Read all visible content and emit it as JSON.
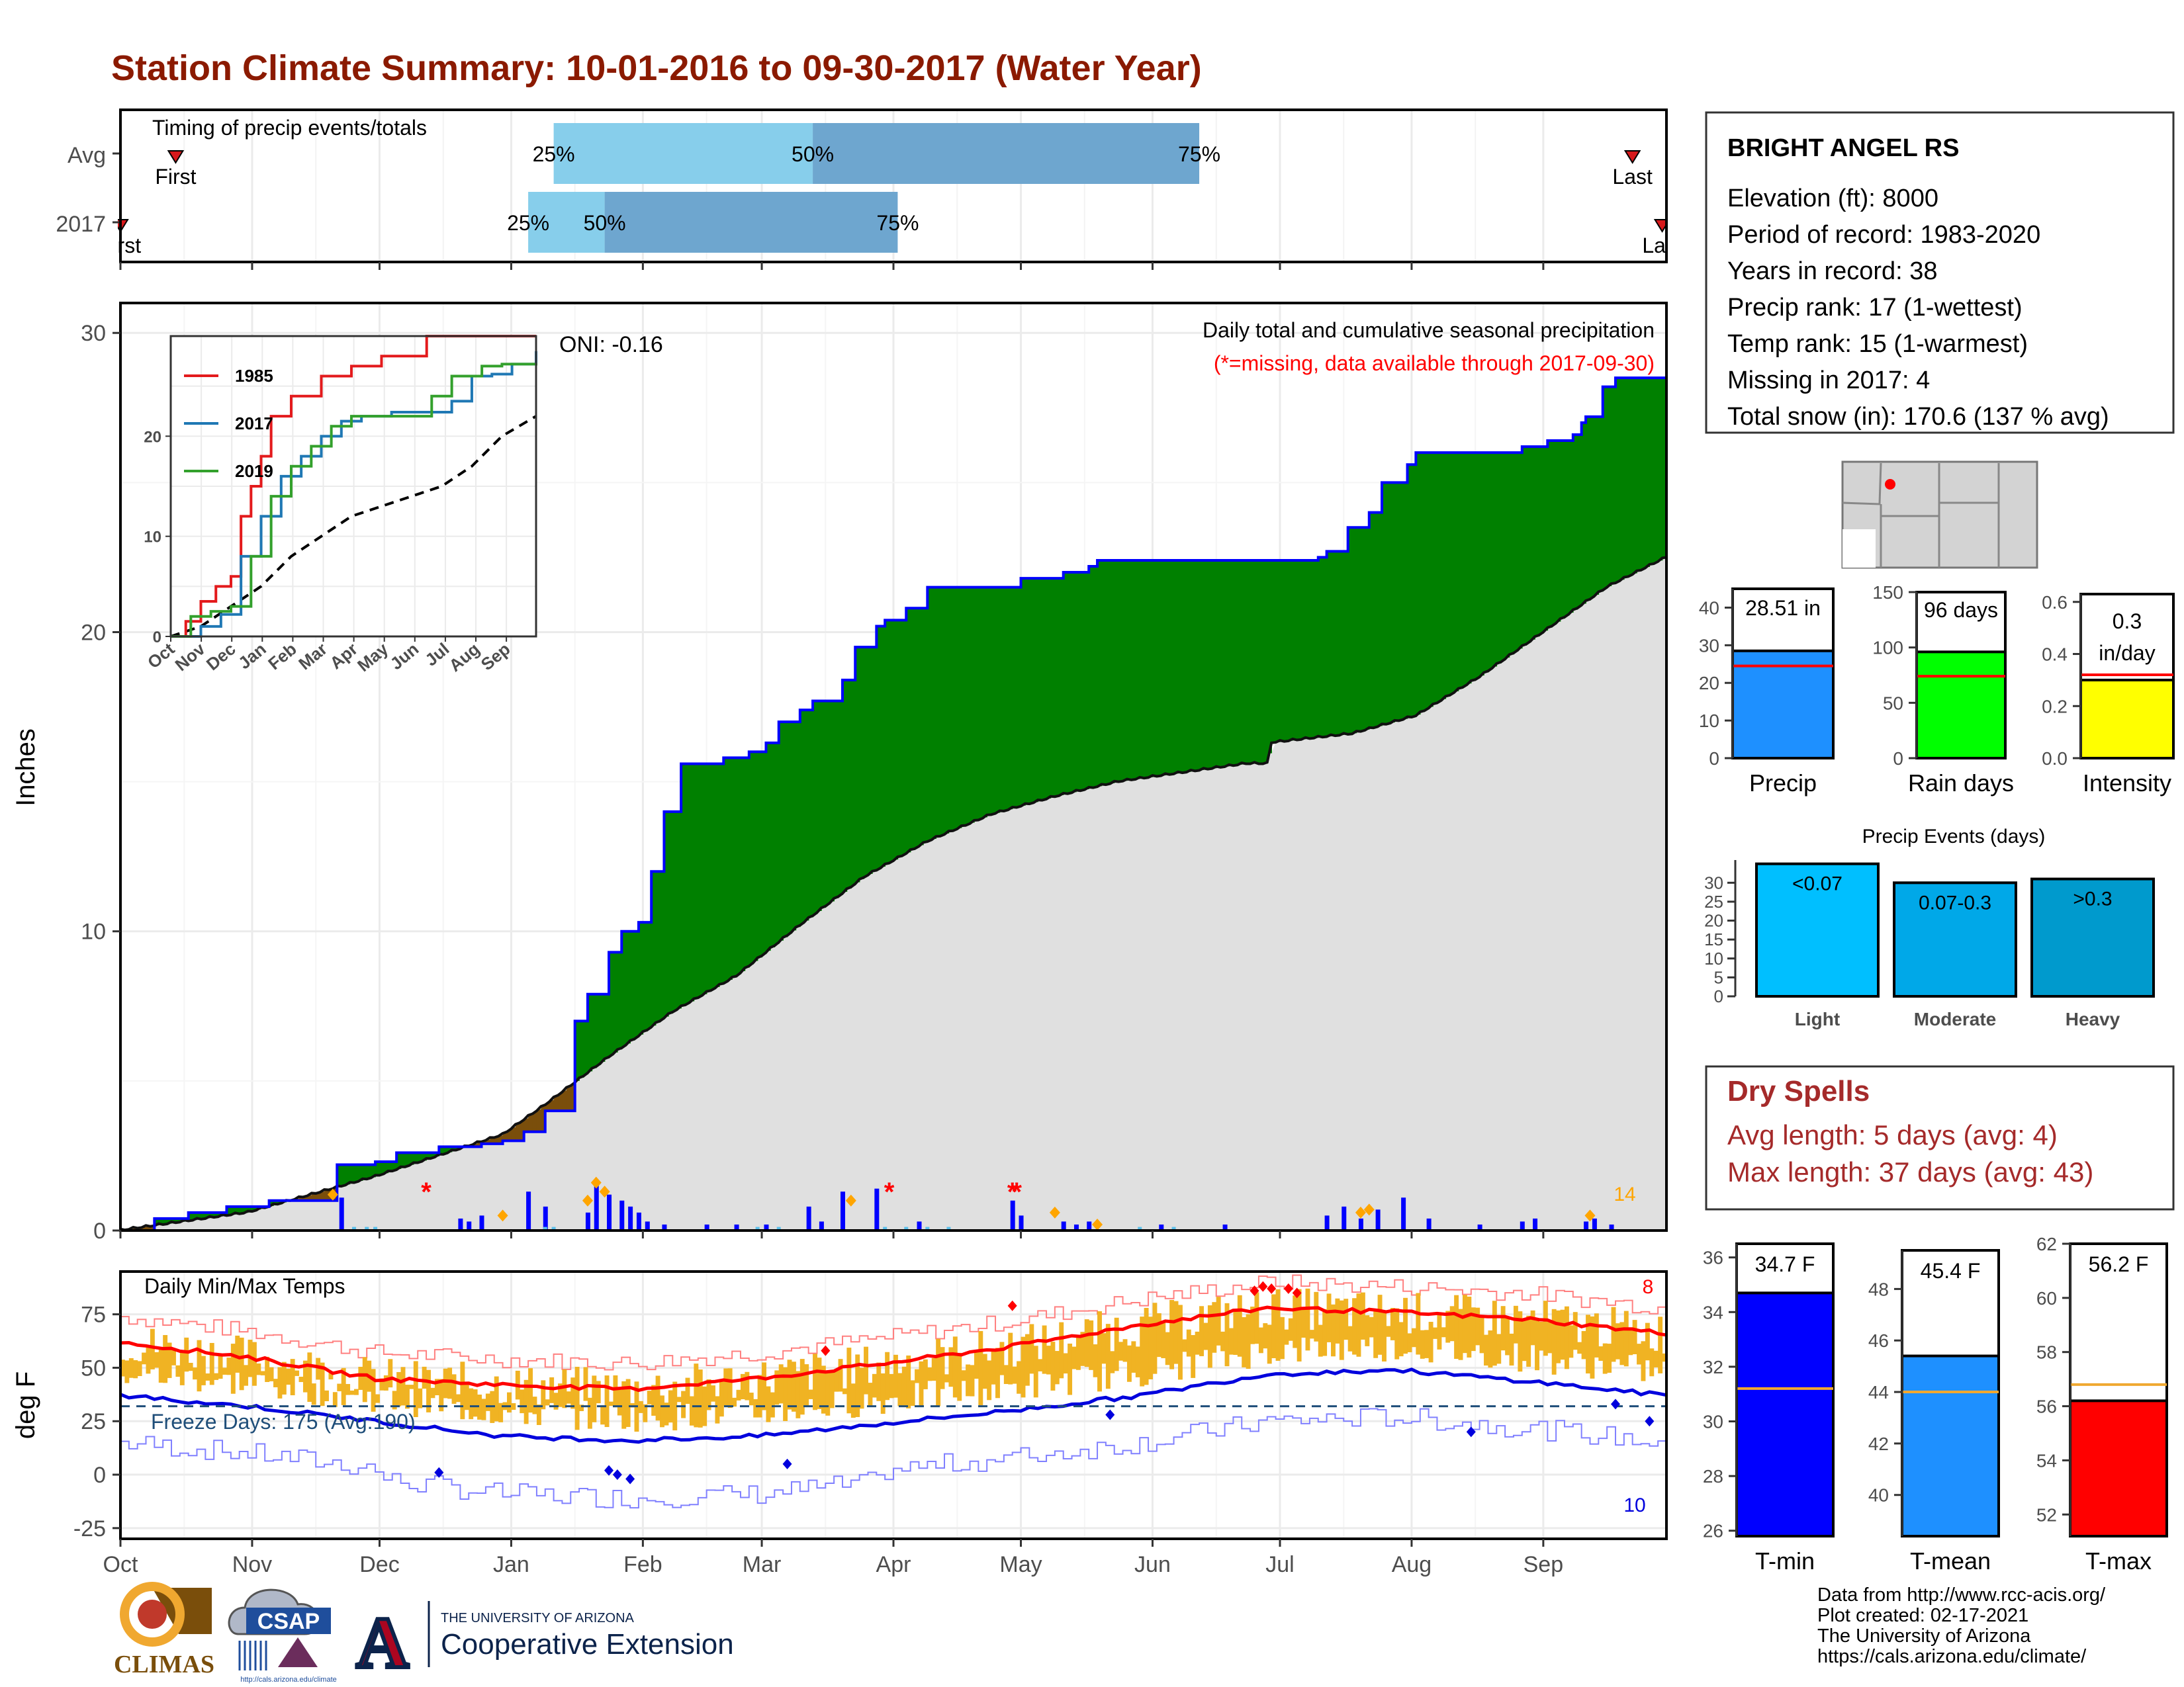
{
  "title": "Station Climate Summary: 10-01-2016 to 09-30-2017 (Water Year)",
  "colors": {
    "title": "#8b1a00",
    "light_blue": "#87ceeb",
    "mid_blue": "#6ea6cf",
    "green": "#008000",
    "brown": "#7a4e0b",
    "grey": "#e0e0e0",
    "blue": "#0000ff",
    "red": "#ff0000",
    "orange": "#e6a817",
    "dryspell": "#a52a2a",
    "yellow": "#ffff00",
    "lime": "#00ff00",
    "dodger": "#1e90ff",
    "cyan": "#00bfff",
    "teal": "#009acd"
  },
  "timing": {
    "label": "Timing of precip events/totals",
    "rows": [
      {
        "label": "Avg",
        "p25": 102,
        "p50": 163,
        "p75": 254,
        "first": 13,
        "last": 356,
        "first_label": "First",
        "last_label": "Last"
      },
      {
        "label": "2017",
        "p25": 96,
        "p50": 114,
        "p75": 183,
        "first": 0,
        "last": 363,
        "first_label": "First",
        "last_label": "Last"
      }
    ],
    "pct_labels": [
      "25%",
      "50%",
      "75%"
    ]
  },
  "precip_panel": {
    "ylabel": "Inches",
    "yticks": [
      0,
      10,
      20,
      30
    ],
    "ylim": [
      0,
      31
    ],
    "header": "Daily total and cumulative seasonal precipitation",
    "subheader": "(*=missing, data available through 2017-09-30)",
    "oni": "ONI: -0.16",
    "count_label": "14",
    "cumulative_2017": [
      [
        0,
        0
      ],
      [
        8,
        0.4
      ],
      [
        16,
        0.6
      ],
      [
        25,
        0.8
      ],
      [
        35,
        1.0
      ],
      [
        38,
        1.0
      ],
      [
        50,
        1.0
      ],
      [
        51,
        2.2
      ],
      [
        60,
        2.3
      ],
      [
        65,
        2.6
      ],
      [
        75,
        2.8
      ],
      [
        85,
        2.9
      ],
      [
        90,
        3.0
      ],
      [
        95,
        3.3
      ],
      [
        100,
        4.0
      ],
      [
        107,
        7.0
      ],
      [
        110,
        7.9
      ],
      [
        115,
        9.3
      ],
      [
        118,
        10.0
      ],
      [
        122,
        10.3
      ],
      [
        125,
        12.0
      ],
      [
        128,
        14.0
      ],
      [
        132,
        15.6
      ],
      [
        140,
        15.6
      ],
      [
        142,
        15.8
      ],
      [
        148,
        16.0
      ],
      [
        152,
        16.3
      ],
      [
        155,
        17.0
      ],
      [
        160,
        17.4
      ],
      [
        163,
        17.7
      ],
      [
        170,
        18.4
      ],
      [
        173,
        19.5
      ],
      [
        178,
        20.2
      ],
      [
        180,
        20.4
      ],
      [
        185,
        20.8
      ],
      [
        190,
        21.5
      ],
      [
        200,
        21.5
      ],
      [
        212,
        21.8
      ],
      [
        222,
        22.0
      ],
      [
        228,
        22.2
      ],
      [
        230,
        22.4
      ],
      [
        240,
        22.4
      ],
      [
        260,
        22.4
      ],
      [
        272,
        22.4
      ],
      [
        282,
        22.5
      ],
      [
        284,
        22.7
      ],
      [
        289,
        23.5
      ],
      [
        294,
        24.0
      ],
      [
        297,
        25.0
      ],
      [
        303,
        25.6
      ],
      [
        305,
        26.0
      ],
      [
        310,
        26.0
      ],
      [
        320,
        26.0
      ],
      [
        330,
        26.2
      ],
      [
        336,
        26.4
      ],
      [
        342,
        26.6
      ],
      [
        344,
        27.0
      ],
      [
        345,
        27.2
      ],
      [
        348,
        27.2
      ],
      [
        349,
        28.2
      ],
      [
        352,
        28.5
      ],
      [
        364,
        28.51
      ]
    ],
    "cumulative_avg": [
      [
        0,
        0
      ],
      [
        30,
        0.6
      ],
      [
        60,
        1.8
      ],
      [
        90,
        3.2
      ],
      [
        100,
        4.2
      ],
      [
        115,
        5.8
      ],
      [
        130,
        7.3
      ],
      [
        145,
        8.5
      ],
      [
        160,
        10.2
      ],
      [
        175,
        11.8
      ],
      [
        190,
        13.0
      ],
      [
        205,
        13.9
      ],
      [
        220,
        14.5
      ],
      [
        235,
        15.0
      ],
      [
        250,
        15.3
      ],
      [
        265,
        15.6
      ],
      [
        270,
        15.6
      ],
      [
        271,
        16.3
      ],
      [
        290,
        16.6
      ],
      [
        305,
        17.2
      ],
      [
        320,
        18.5
      ],
      [
        335,
        20.0
      ],
      [
        350,
        21.5
      ],
      [
        364,
        22.5
      ]
    ],
    "daily_bars": [
      [
        52,
        1.1
      ],
      [
        80,
        0.4
      ],
      [
        82,
        0.3
      ],
      [
        85,
        0.5
      ],
      [
        96,
        1.3
      ],
      [
        100,
        0.8
      ],
      [
        110,
        0.6
      ],
      [
        112,
        1.5
      ],
      [
        115,
        1.2
      ],
      [
        118,
        1.0
      ],
      [
        120,
        0.8
      ],
      [
        122,
        0.6
      ],
      [
        124,
        0.3
      ],
      [
        128,
        0.2
      ],
      [
        138,
        0.2
      ],
      [
        145,
        0.2
      ],
      [
        152,
        0.2
      ],
      [
        162,
        0.8
      ],
      [
        165,
        0.3
      ],
      [
        170,
        1.3
      ],
      [
        178,
        1.4
      ],
      [
        188,
        0.3
      ],
      [
        210,
        1.0
      ],
      [
        212,
        0.5
      ],
      [
        222,
        0.3
      ],
      [
        225,
        0.2
      ],
      [
        228,
        0.3
      ],
      [
        245,
        0.2
      ],
      [
        260,
        0.2
      ],
      [
        284,
        0.5
      ],
      [
        288,
        0.8
      ],
      [
        292,
        0.4
      ],
      [
        296,
        0.7
      ],
      [
        302,
        1.1
      ],
      [
        308,
        0.4
      ],
      [
        320,
        0.2
      ],
      [
        330,
        0.3
      ],
      [
        333,
        0.4
      ],
      [
        345,
        0.3
      ],
      [
        347,
        0.4
      ],
      [
        351,
        0.2
      ]
    ],
    "missing_days": [
      72,
      181,
      210,
      211
    ],
    "orange_markers": [
      [
        50,
        1.2
      ],
      [
        90,
        0.5
      ],
      [
        110,
        1.0
      ],
      [
        112,
        1.6
      ],
      [
        114,
        1.3
      ],
      [
        172,
        1.0
      ],
      [
        220,
        0.6
      ],
      [
        230,
        0.2
      ],
      [
        292,
        0.6
      ],
      [
        294,
        0.7
      ],
      [
        346,
        0.5
      ]
    ],
    "months": [
      "Oct",
      "Nov",
      "Dec",
      "Jan",
      "Feb",
      "Mar",
      "Apr",
      "May",
      "Jun",
      "Jul",
      "Aug",
      "Sep"
    ],
    "month_starts": [
      0,
      31,
      61,
      92,
      123,
      151,
      182,
      212,
      243,
      273,
      304,
      335
    ]
  },
  "inset": {
    "yticks": [
      0,
      10,
      20
    ],
    "ylim": [
      0,
      30
    ],
    "months": [
      "Oct",
      "Nov",
      "Dec",
      "Jan",
      "Feb",
      "Mar",
      "Apr",
      "May",
      "Jun",
      "Jul",
      "Aug",
      "Sep"
    ],
    "series": [
      {
        "name": "1985",
        "color": "#e31a1c",
        "values": [
          [
            0,
            0
          ],
          [
            15,
            1.5
          ],
          [
            30,
            3.5
          ],
          [
            45,
            5
          ],
          [
            60,
            6
          ],
          [
            70,
            12
          ],
          [
            80,
            15
          ],
          [
            90,
            18
          ],
          [
            100,
            22
          ],
          [
            120,
            24
          ],
          [
            150,
            26
          ],
          [
            180,
            27
          ],
          [
            210,
            28
          ],
          [
            240,
            28
          ],
          [
            255,
            31
          ],
          [
            270,
            32
          ],
          [
            290,
            32
          ],
          [
            300,
            33
          ],
          [
            330,
            35
          ],
          [
            364,
            36
          ]
        ]
      },
      {
        "name": "2017",
        "color": "#1f78b4",
        "values": [
          [
            0,
            0
          ],
          [
            30,
            1
          ],
          [
            50,
            2.2
          ],
          [
            70,
            8
          ],
          [
            90,
            12
          ],
          [
            110,
            16
          ],
          [
            130,
            18
          ],
          [
            150,
            20
          ],
          [
            170,
            21.5
          ],
          [
            190,
            22
          ],
          [
            220,
            22.4
          ],
          [
            250,
            22.4
          ],
          [
            280,
            23.5
          ],
          [
            300,
            26
          ],
          [
            320,
            26.2
          ],
          [
            340,
            27.2
          ],
          [
            364,
            28.5
          ]
        ]
      },
      {
        "name": "2019",
        "color": "#33a02c",
        "values": [
          [
            0,
            0
          ],
          [
            20,
            2
          ],
          [
            40,
            2.5
          ],
          [
            60,
            3
          ],
          [
            80,
            8
          ],
          [
            100,
            14
          ],
          [
            120,
            17
          ],
          [
            140,
            19
          ],
          [
            160,
            21
          ],
          [
            180,
            22
          ],
          [
            200,
            22
          ],
          [
            230,
            22
          ],
          [
            260,
            24
          ],
          [
            280,
            26
          ],
          [
            310,
            27
          ],
          [
            330,
            27.2
          ],
          [
            364,
            27.3
          ]
        ]
      }
    ],
    "avg_dashed": [
      [
        0,
        0
      ],
      [
        30,
        1
      ],
      [
        60,
        3
      ],
      [
        90,
        5
      ],
      [
        120,
        8
      ],
      [
        150,
        10
      ],
      [
        180,
        12
      ],
      [
        210,
        13
      ],
      [
        240,
        14
      ],
      [
        270,
        15
      ],
      [
        300,
        17
      ],
      [
        330,
        20
      ],
      [
        364,
        22
      ]
    ]
  },
  "temp_panel": {
    "ylabel": "deg F",
    "yticks": [
      -25,
      0,
      25,
      50,
      75
    ],
    "ylim": [
      -30,
      95
    ],
    "header": "Daily Min/Max Temps",
    "freeze_label": "Freeze Days: 175 (Avg:190)",
    "freeze_line": 32,
    "count_high": "8",
    "count_low": "10"
  },
  "station": {
    "name": "BRIGHT ANGEL RS",
    "lines": [
      "Elevation (ft): 8000",
      "Period of record: 1983-2020",
      "Years in record: 38",
      "Precip rank: 17 (1-wettest)",
      "Temp rank: 15 (1-warmest)",
      "Missing in 2017: 4",
      "Total snow (in): 170.6 (137 % avg)"
    ]
  },
  "small_bars": [
    {
      "label": "Precip",
      "value": 28.51,
      "value_label": "28.51 in",
      "avg": 24.5,
      "ylim": [
        0,
        45
      ],
      "yticks": [
        0,
        10,
        20,
        30,
        40
      ],
      "color": "#1e90ff"
    },
    {
      "label": "Rain days",
      "value": 96,
      "value_label": "96 days",
      "avg": 74,
      "ylim": [
        0,
        150
      ],
      "yticks": [
        0,
        50,
        100,
        150
      ],
      "color": "#00ff00"
    },
    {
      "label": "Intensity",
      "value": 0.3,
      "value_label": "0.3\nin/day",
      "value_label_1": "0.3",
      "value_label_2": "in/day",
      "avg": 0.32,
      "ylim": [
        0,
        0.63
      ],
      "yticks": [
        0.0,
        0.2,
        0.4,
        0.6
      ],
      "color": "#ffff00"
    }
  ],
  "events": {
    "title": "Precip Events (days)",
    "yticks": [
      0,
      5,
      10,
      15,
      20,
      25,
      30
    ],
    "ylim": [
      0,
      36
    ],
    "bars": [
      {
        "category": "Light",
        "label": "<0.07",
        "value": 35,
        "color": "#00bfff"
      },
      {
        "category": "Moderate",
        "label": "0.07-0.3",
        "value": 30,
        "color": "#00a8e8"
      },
      {
        "category": "Heavy",
        "label": ">0.3",
        "value": 31,
        "color": "#009acd"
      }
    ]
  },
  "dry_spells": {
    "title": "Dry Spells",
    "avg_line": "Avg length: 5 days (avg: 4)",
    "max_line": "Max length: 37 days (avg: 43)"
  },
  "temp_bars": [
    {
      "label": "T-min",
      "value": 34.7,
      "value_label": "34.7 F",
      "avg": 31.2,
      "ylim": [
        25.8,
        36.5
      ],
      "yticks": [
        26,
        28,
        30,
        32,
        34,
        36
      ],
      "color": "#0000ff"
    },
    {
      "label": "T-mean",
      "value": 45.4,
      "value_label": "45.4 F",
      "avg": 44.0,
      "ylim": [
        38.4,
        49.5
      ],
      "yticks": [
        40,
        42,
        44,
        46,
        48
      ],
      "color": "#1e90ff"
    },
    {
      "label": "T-max",
      "value": 56.2,
      "value_label": "56.2 F",
      "avg": 56.8,
      "ylim": [
        51.2,
        62.0
      ],
      "yticks": [
        52,
        54,
        56,
        58,
        60,
        62
      ],
      "color": "#ff0000"
    }
  ],
  "credits": [
    "Data from http://www.rcc-acis.org/",
    "Plot created: 02-17-2021",
    "The University of Arizona",
    "https://cals.arizona.edu/climate/"
  ],
  "logos": {
    "climas": "CLIMAS",
    "csap": "CSAP",
    "csap_url": "http://cals.arizona.edu/climate",
    "ua_top": "THE UNIVERSITY OF ARIZONA",
    "ua_bottom": "Cooperative Extension",
    "ua_mark": "A"
  }
}
